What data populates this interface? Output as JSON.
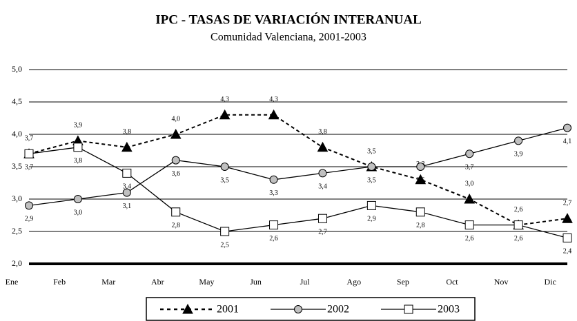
{
  "chart_data": {
    "type": "line",
    "title": "IPC - TASAS DE VARIACIÓN INTERANUAL",
    "subtitle": "Comunidad Valenciana, 2001-2003",
    "categories": [
      "Ene",
      "Feb",
      "Mar",
      "Abr",
      "May",
      "Jun",
      "Jul",
      "Ago",
      "Sep",
      "Oct",
      "Nov",
      "Dic"
    ],
    "series": [
      {
        "name": "2001",
        "color": "#000000",
        "marker": "triangle",
        "dash": true,
        "values": [
          3.7,
          3.9,
          3.8,
          4.0,
          4.3,
          4.3,
          3.8,
          3.5,
          3.3,
          3.0,
          2.6,
          2.7
        ],
        "value_labels": [
          "3,7",
          "3,9",
          "3,8",
          "4,0",
          "4,3",
          "4,3",
          "3,8",
          "3,5",
          "3,3",
          "3,0",
          "2,6",
          "2,7"
        ]
      },
      {
        "name": "2002",
        "color": "#000000",
        "marker": "circle",
        "dash": false,
        "values": [
          2.9,
          3.0,
          3.1,
          3.6,
          3.5,
          3.3,
          3.4,
          3.5,
          3.5,
          3.7,
          3.9,
          4.1
        ],
        "value_labels": [
          "2,9",
          "3,0",
          "3,1",
          "3,6",
          "3,5",
          "3,3",
          "3,4",
          "3,5",
          "3,5",
          "3,7",
          "3,9",
          "4,1"
        ]
      },
      {
        "name": "2003",
        "color": "#000000",
        "marker": "square",
        "dash": false,
        "values": [
          3.7,
          3.8,
          3.4,
          2.8,
          2.5,
          2.6,
          2.7,
          2.9,
          2.8,
          2.6,
          2.6,
          2.4
        ],
        "value_labels": [
          "3,7",
          "3,8",
          "3,4",
          "2,8",
          "2,5",
          "2,6",
          "2,7",
          "2,9",
          "2,8",
          "2,6",
          "2,6",
          "2,4"
        ]
      }
    ],
    "ylim": [
      2.0,
      5.0
    ],
    "yticks": [
      {
        "value": 2.0,
        "label": "2,0"
      },
      {
        "value": 2.5,
        "label": "2,5"
      },
      {
        "value": 3.0,
        "label": "3,0"
      },
      {
        "value": 3.5,
        "label": "3,5"
      },
      {
        "value": 4.0,
        "label": "4,0"
      },
      {
        "value": 4.5,
        "label": "4,5"
      },
      {
        "value": 5.0,
        "label": "5,0"
      }
    ],
    "grid": true,
    "legend": "bottom"
  }
}
